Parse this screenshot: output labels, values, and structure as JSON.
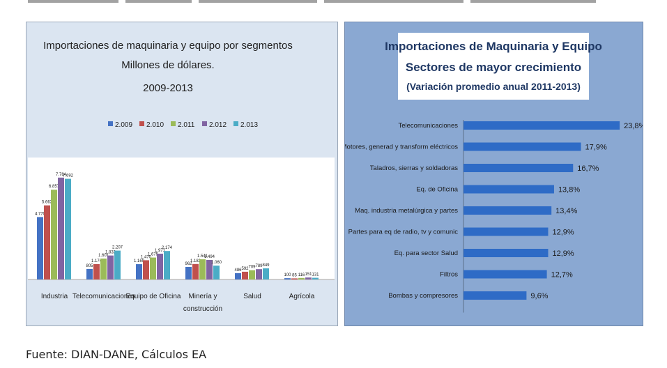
{
  "source_note": "Fuente: DIAN-DANE, Cálculos EA",
  "colors": {
    "series": [
      "#4472c4",
      "#c0504d",
      "#9bbb59",
      "#8064a2",
      "#4bacc6"
    ],
    "right_bar": "#2e6bc6",
    "left_bg": "#dbe5f1",
    "right_bg": "#8aa8d2"
  },
  "chart_data": [
    {
      "type": "bar",
      "title": [
        "Importaciones de maquinaria y equipo por segmentos",
        "Millones de dólares.",
        "2009-2013"
      ],
      "categories": [
        "Industria",
        "Telecomunicaciones",
        "Equipo de Oficina",
        "Minería y construcción",
        "Salud",
        "Agrícola"
      ],
      "category_lines": [
        [
          "Industria"
        ],
        [
          "Telecomunicaciones"
        ],
        [
          "Equipo de Oficina"
        ],
        [
          "Minería y",
          "construcción"
        ],
        [
          "Salud"
        ],
        [
          "Agrícola"
        ]
      ],
      "series": [
        {
          "name": "2.009",
          "values": [
            4770,
            805,
            1169,
            962,
            486,
            100
          ],
          "labels": [
            "4.770",
            "805",
            "1.169",
            "962",
            "486",
            "100"
          ]
        },
        {
          "name": "2.010",
          "values": [
            5663,
            1174,
            1470,
            1182,
            592,
            85
          ],
          "labels": [
            "5.663",
            "1.174",
            "1.470",
            "1.182",
            "592",
            "85"
          ]
        },
        {
          "name": "2.011",
          "values": [
            6857,
            1601,
            1675,
            1541,
            709,
            116
          ],
          "labels": [
            "6.857",
            "1.601",
            "1.675",
            "1.541",
            "709",
            "116"
          ]
        },
        {
          "name": "2.012",
          "values": [
            7784,
            1832,
            1971,
            1494,
            789,
            151
          ],
          "labels": [
            "7.784",
            "1.832",
            "1.971",
            "1.494",
            "789",
            "151"
          ]
        },
        {
          "name": "2.013",
          "values": [
            7692,
            2207,
            2174,
            1060,
            849,
            131
          ],
          "labels": [
            "7.692",
            "2.207",
            "2.174",
            "1.060",
            "849",
            "131"
          ]
        }
      ],
      "legend_position": "top",
      "ylim": [
        0,
        9000
      ],
      "grid": false
    },
    {
      "type": "bar",
      "orientation": "horizontal",
      "title": [
        "Importaciones de Maquinaria y Equipo",
        "Sectores de mayor crecimiento",
        "(Variación promedio anual 2011-2013)"
      ],
      "categories": [
        "Telecomunicaciones",
        "Motores, generad y transform eléctricos",
        "Taladros, sierras y soldadoras",
        "Eq. de Oficina",
        "Maq. industria metalúrgica y partes",
        "Partes para eq de radio, tv y comunic",
        "Eq. para sector Salud",
        "Filtros",
        "Bombas y compresores"
      ],
      "values": [
        23.8,
        17.9,
        16.7,
        13.8,
        13.4,
        12.9,
        12.9,
        12.7,
        9.6
      ],
      "labels": [
        "23,8%",
        "17,9%",
        "16,7%",
        "13,8%",
        "13,4%",
        "12,9%",
        "12,9%",
        "12,7%",
        "9,6%"
      ],
      "xlim": [
        0,
        24
      ],
      "grid": false
    }
  ]
}
